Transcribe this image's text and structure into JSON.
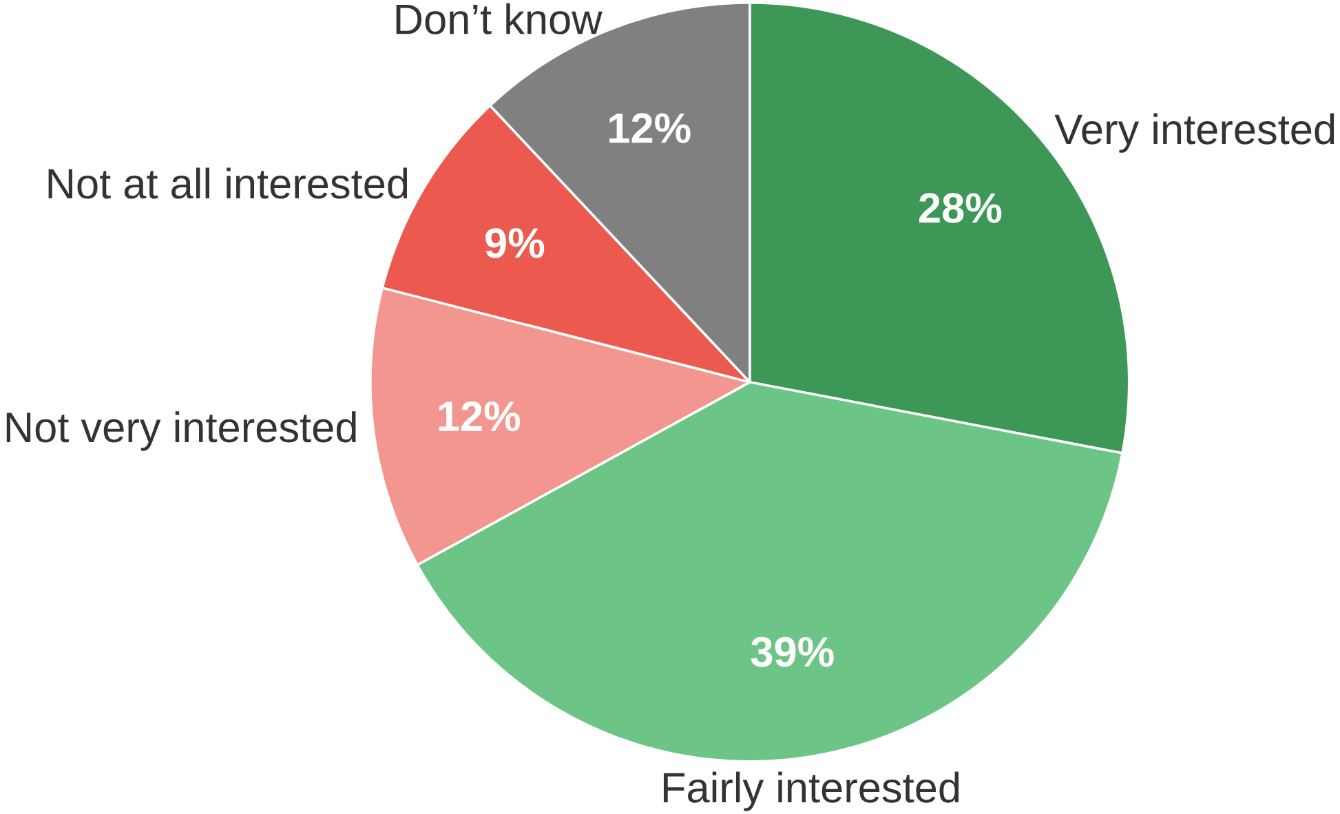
{
  "chart_data": {
    "type": "pie",
    "categories": [
      "Very interested",
      "Fairly interested",
      "Not very interested",
      "Not at all interested",
      "Don’t know"
    ],
    "values": [
      28,
      39,
      12,
      9,
      12
    ],
    "value_labels": [
      "28%",
      "39%",
      "12%",
      "9%",
      "12%"
    ],
    "colors": [
      "#3d9857",
      "#6cc586",
      "#f2968f",
      "#ec5a4f",
      "#808080"
    ]
  }
}
